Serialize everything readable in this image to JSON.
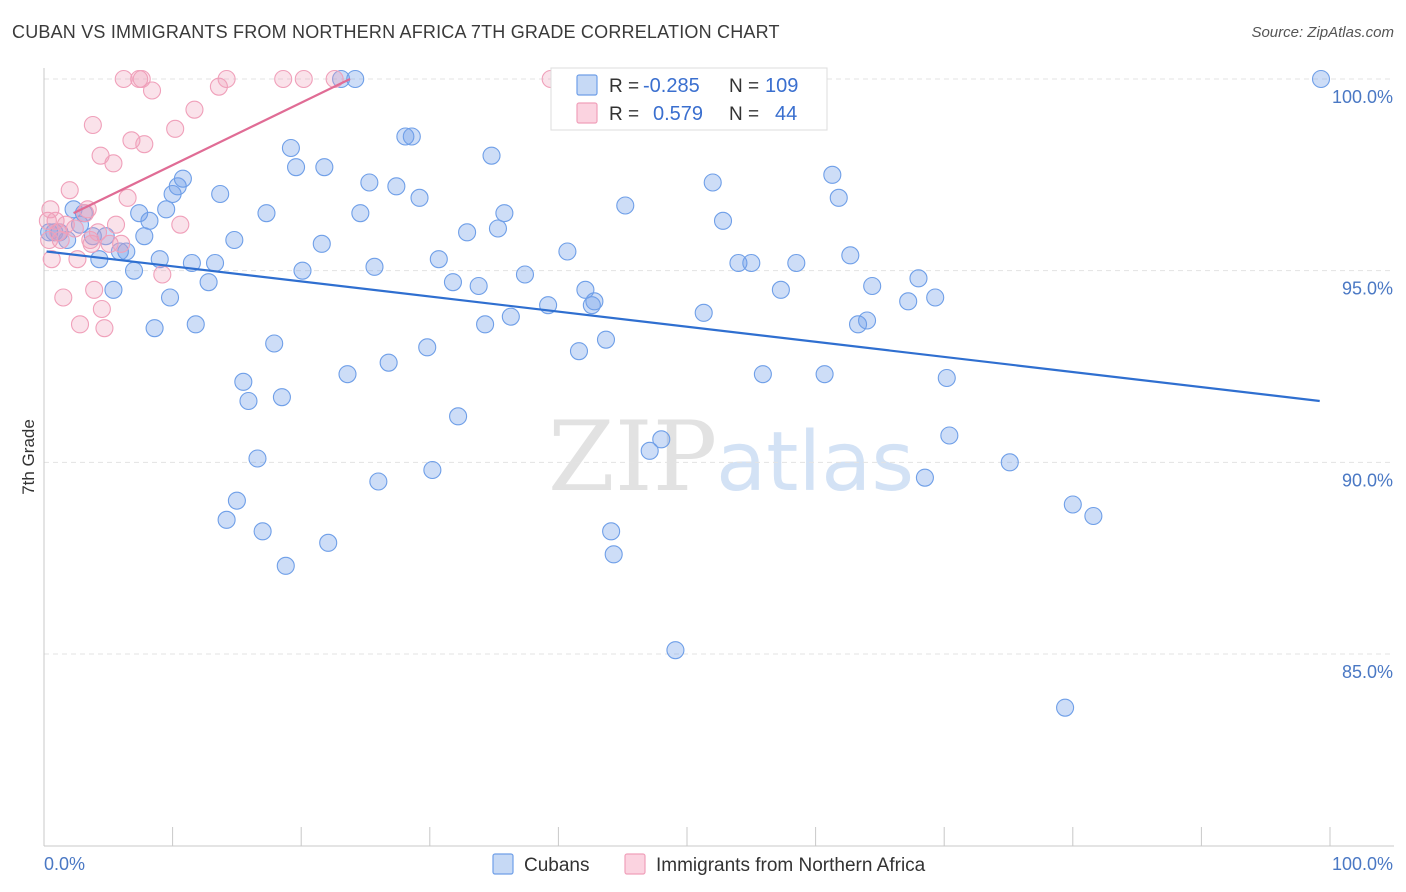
{
  "title": "CUBAN VS IMMIGRANTS FROM NORTHERN AFRICA 7TH GRADE CORRELATION CHART",
  "source": "Source: ZipAtlas.com",
  "watermark": {
    "zip": "ZIP",
    "atlas": "atlas"
  },
  "legend_top": {
    "rows": [
      {
        "r_label": "R =",
        "r_value": "-0.285",
        "n_label": "N =",
        "n_value": "109",
        "color": "#6f9fe8"
      },
      {
        "r_label": "R =",
        "r_value": "0.579",
        "n_label": "N =",
        "n_value": "44",
        "color": "#f0a0ba"
      }
    ]
  },
  "legend_bottom": {
    "items": [
      {
        "label": "Cubans",
        "color": "#6f9fe8"
      },
      {
        "label": "Immigrants from Northern Africa",
        "color": "#f0a0ba"
      }
    ]
  },
  "chart_data": {
    "type": "scatter",
    "title": "CUBAN VS IMMIGRANTS FROM NORTHERN AFRICA 7TH GRADE CORRELATION CHART",
    "xlabel": "",
    "ylabel": "7th Grade",
    "xlim": [
      0,
      100
    ],
    "ylim": [
      80.5,
      100.75
    ],
    "x_tick_labels": {
      "min": "0.0%",
      "max": "100.0%"
    },
    "y_ticks": [
      {
        "value": 85,
        "label": "85.0%"
      },
      {
        "value": 90,
        "label": "90.0%"
      },
      {
        "value": 95,
        "label": "95.0%"
      },
      {
        "value": 100,
        "label": "100.0%"
      }
    ],
    "series": [
      {
        "name": "Cubans",
        "color": "#6f9fe8",
        "line_color": "#2f6fd0",
        "trend": {
          "x": [
            0.2,
            99.2
          ],
          "y": [
            95.5,
            91.6
          ]
        },
        "points": [
          [
            0.4,
            96.0
          ],
          [
            0.8,
            96.0
          ],
          [
            1.2,
            96.0
          ],
          [
            1.8,
            95.8
          ],
          [
            2.3,
            96.6
          ],
          [
            2.8,
            96.2
          ],
          [
            3.1,
            96.5
          ],
          [
            3.8,
            95.9
          ],
          [
            4.3,
            95.3
          ],
          [
            4.8,
            95.9
          ],
          [
            5.4,
            94.5
          ],
          [
            5.9,
            95.5
          ],
          [
            6.4,
            95.5
          ],
          [
            7.0,
            95.0
          ],
          [
            7.4,
            96.5
          ],
          [
            7.8,
            95.9
          ],
          [
            8.2,
            96.3
          ],
          [
            8.6,
            93.5
          ],
          [
            9.0,
            95.3
          ],
          [
            9.5,
            96.6
          ],
          [
            9.8,
            94.3
          ],
          [
            10.0,
            97.0
          ],
          [
            10.4,
            97.2
          ],
          [
            10.8,
            97.4
          ],
          [
            11.5,
            95.2
          ],
          [
            11.8,
            93.6
          ],
          [
            12.8,
            94.7
          ],
          [
            13.3,
            95.2
          ],
          [
            13.7,
            97.0
          ],
          [
            14.2,
            88.5
          ],
          [
            14.8,
            95.8
          ],
          [
            15.5,
            92.1
          ],
          [
            15.9,
            91.6
          ],
          [
            16.6,
            90.1
          ],
          [
            17.3,
            96.5
          ],
          [
            17.9,
            93.1
          ],
          [
            18.5,
            91.7
          ],
          [
            19.2,
            98.2
          ],
          [
            19.6,
            97.7
          ],
          [
            20.1,
            95.0
          ],
          [
            21.6,
            95.7
          ],
          [
            22.1,
            87.9
          ],
          [
            23.6,
            92.3
          ],
          [
            24.2,
            100.0
          ],
          [
            24.6,
            96.5
          ],
          [
            25.3,
            97.3
          ],
          [
            25.7,
            95.1
          ],
          [
            26.8,
            92.6
          ],
          [
            27.4,
            97.2
          ],
          [
            28.1,
            98.5
          ],
          [
            28.6,
            98.5
          ],
          [
            29.2,
            96.9
          ],
          [
            29.8,
            93.0
          ],
          [
            30.2,
            89.8
          ],
          [
            30.7,
            95.3
          ],
          [
            31.8,
            94.7
          ],
          [
            32.2,
            91.2
          ],
          [
            32.9,
            96.0
          ],
          [
            33.8,
            94.6
          ],
          [
            34.3,
            93.6
          ],
          [
            34.8,
            98.0
          ],
          [
            35.3,
            96.1
          ],
          [
            35.8,
            96.5
          ],
          [
            36.3,
            93.8
          ],
          [
            37.4,
            94.9
          ],
          [
            39.2,
            94.1
          ],
          [
            40.7,
            95.5
          ],
          [
            41.6,
            92.9
          ],
          [
            42.1,
            94.5
          ],
          [
            42.6,
            94.1
          ],
          [
            42.8,
            94.2
          ],
          [
            43.7,
            93.2
          ],
          [
            44.1,
            88.2
          ],
          [
            44.3,
            87.6
          ],
          [
            45.2,
            96.7
          ],
          [
            47.1,
            90.3
          ],
          [
            48.0,
            90.6
          ],
          [
            49.1,
            85.1
          ],
          [
            51.3,
            93.9
          ],
          [
            52.0,
            97.3
          ],
          [
            52.8,
            96.3
          ],
          [
            54.0,
            95.2
          ],
          [
            55.0,
            95.2
          ],
          [
            55.9,
            92.3
          ],
          [
            57.3,
            94.5
          ],
          [
            58.5,
            95.2
          ],
          [
            60.7,
            92.3
          ],
          [
            61.3,
            97.5
          ],
          [
            61.8,
            96.9
          ],
          [
            62.7,
            95.4
          ],
          [
            63.3,
            93.6
          ],
          [
            64.0,
            93.7
          ],
          [
            64.4,
            94.6
          ],
          [
            67.2,
            94.2
          ],
          [
            68.0,
            94.8
          ],
          [
            68.5,
            89.6
          ],
          [
            69.3,
            94.3
          ],
          [
            70.2,
            92.2
          ],
          [
            70.4,
            90.7
          ],
          [
            75.1,
            90.0
          ],
          [
            80.0,
            88.9
          ],
          [
            81.6,
            88.6
          ],
          [
            79.4,
            83.6
          ],
          [
            99.3,
            100.0
          ],
          [
            23.1,
            100.0
          ],
          [
            21.8,
            97.7
          ],
          [
            15.0,
            89.0
          ],
          [
            17.0,
            88.2
          ],
          [
            18.8,
            87.3
          ],
          [
            26.0,
            89.5
          ]
        ]
      },
      {
        "name": "Immigrants from Northern Africa",
        "color": "#f0a0ba",
        "line_color": "#e06c95",
        "trend": {
          "x": [
            2.3,
            23.8
          ],
          "y": [
            96.5,
            100.0
          ]
        },
        "points": [
          [
            0.3,
            96.3
          ],
          [
            0.4,
            95.8
          ],
          [
            0.5,
            96.6
          ],
          [
            0.6,
            95.3
          ],
          [
            0.9,
            96.3
          ],
          [
            1.1,
            96.0
          ],
          [
            1.3,
            95.8
          ],
          [
            1.5,
            94.3
          ],
          [
            1.7,
            96.2
          ],
          [
            2.0,
            97.1
          ],
          [
            2.4,
            96.1
          ],
          [
            2.6,
            95.3
          ],
          [
            2.8,
            93.6
          ],
          [
            3.2,
            96.5
          ],
          [
            3.4,
            96.6
          ],
          [
            3.6,
            95.8
          ],
          [
            3.7,
            95.7
          ],
          [
            3.9,
            94.5
          ],
          [
            4.2,
            96.0
          ],
          [
            4.5,
            94.0
          ],
          [
            4.7,
            93.5
          ],
          [
            5.1,
            95.7
          ],
          [
            5.6,
            96.2
          ],
          [
            6.0,
            95.7
          ],
          [
            6.5,
            96.9
          ],
          [
            6.8,
            98.4
          ],
          [
            7.4,
            100.0
          ],
          [
            7.8,
            98.3
          ],
          [
            8.4,
            99.7
          ],
          [
            9.2,
            94.9
          ],
          [
            10.2,
            98.7
          ],
          [
            10.6,
            96.2
          ],
          [
            11.7,
            99.2
          ],
          [
            13.6,
            99.8
          ],
          [
            14.2,
            100.0
          ],
          [
            18.6,
            100.0
          ],
          [
            20.2,
            100.0
          ],
          [
            22.6,
            100.0
          ],
          [
            39.4,
            100.0
          ],
          [
            6.2,
            100.0
          ],
          [
            7.6,
            100.0
          ],
          [
            3.8,
            98.8
          ],
          [
            4.4,
            98.0
          ],
          [
            5.4,
            97.8
          ]
        ]
      }
    ]
  }
}
